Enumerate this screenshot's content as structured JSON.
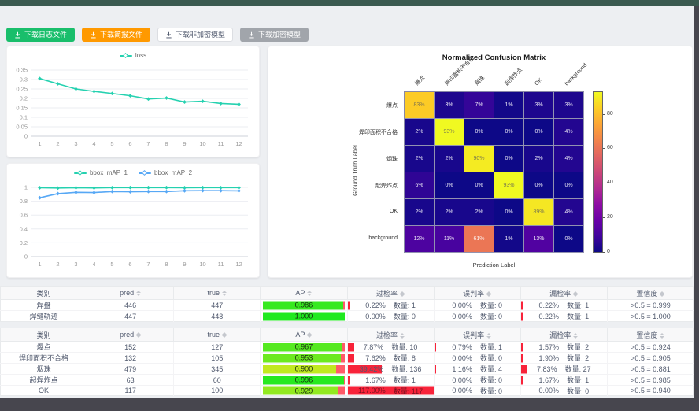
{
  "app": {
    "count_label": "数量:"
  },
  "buttons": [
    {
      "name": "download-log-button",
      "label": "下载日志文件",
      "bg": "#19be6b",
      "fg": "#ffffff",
      "border": ""
    },
    {
      "name": "download-report-button",
      "label": "下载简报文件",
      "bg": "#ff9900",
      "fg": "#ffffff",
      "border": ""
    },
    {
      "name": "download-plain-model-button",
      "label": "下载非加密模型",
      "bg": "#ffffff",
      "fg": "#515a6e",
      "border": "#dcdee2"
    },
    {
      "name": "download-encrypted-model-button",
      "label": "下载加密模型",
      "bg": "#a1a5ab",
      "fg": "#ffffff",
      "border": ""
    }
  ],
  "chart_data": [
    {
      "type": "line",
      "legend": [
        "loss"
      ],
      "colors": [
        "#25d1b0"
      ],
      "x": [
        1,
        2,
        3,
        4,
        5,
        6,
        7,
        8,
        9,
        10,
        11,
        12
      ],
      "series": [
        {
          "name": "loss",
          "values": [
            0.305,
            0.277,
            0.25,
            0.237,
            0.226,
            0.214,
            0.197,
            0.202,
            0.181,
            0.185,
            0.173,
            0.169
          ]
        }
      ],
      "y_ticks": [
        0,
        0.05,
        0.1,
        0.15,
        0.2,
        0.25,
        0.3,
        0.35
      ],
      "y_max": 0.35,
      "grid": true,
      "legend_position": "top-center"
    },
    {
      "type": "line",
      "legend": [
        "bbox_mAP_1",
        "bbox_mAP_2"
      ],
      "colors": [
        "#25d1b0",
        "#57a8f5"
      ],
      "x": [
        1,
        2,
        3,
        4,
        5,
        6,
        7,
        8,
        9,
        10,
        11,
        12
      ],
      "series": [
        {
          "name": "bbox_mAP_1",
          "values": [
            0.995,
            0.99,
            0.995,
            0.992,
            0.996,
            0.997,
            0.997,
            0.997,
            0.995,
            0.997,
            0.996,
            0.996
          ]
        },
        {
          "name": "bbox_mAP_2",
          "values": [
            0.85,
            0.91,
            0.928,
            0.925,
            0.94,
            0.937,
            0.94,
            0.94,
            0.951,
            0.953,
            0.952,
            0.95
          ]
        }
      ],
      "y_ticks": [
        0,
        0.2,
        0.4,
        0.6,
        0.8,
        1
      ],
      "y_max": 1,
      "grid": true,
      "legend_position": "top-center"
    },
    {
      "type": "heatmap",
      "title": "Normalized Confusion Matrix",
      "xlabel": "Prediction Label",
      "ylabel": "Ground Truth Label",
      "labels": [
        "爆点",
        "焊印面积不合格",
        "烟珠",
        "起焊炸点",
        "OK",
        "background"
      ],
      "matrix": [
        [
          83,
          3,
          7,
          1,
          3,
          3
        ],
        [
          2,
          93,
          0,
          0,
          0,
          4
        ],
        [
          2,
          2,
          90,
          0,
          2,
          4
        ],
        [
          6,
          0,
          0,
          93,
          0,
          0
        ],
        [
          2,
          2,
          2,
          0,
          89,
          4
        ],
        [
          12,
          11,
          61,
          1,
          13,
          0
        ]
      ],
      "unit": "%",
      "vmax": 93,
      "colorbar_ticks": [
        0,
        20,
        40,
        60,
        80
      ],
      "colormap": "plasma"
    }
  ],
  "tables": [
    {
      "columns": [
        {
          "key": "label",
          "label": "类别",
          "sortable": false
        },
        {
          "key": "pred",
          "label": "pred",
          "sortable": true
        },
        {
          "key": "true",
          "label": "true",
          "sortable": true
        },
        {
          "key": "ap",
          "label": "AP",
          "sortable": true
        },
        {
          "key": "over",
          "label": "过检率",
          "sortable": true
        },
        {
          "key": "mis",
          "label": "误判率",
          "sortable": true
        },
        {
          "key": "miss",
          "label": "漏检率",
          "sortable": true
        },
        {
          "key": "conf",
          "label": "置信度",
          "sortable": true
        }
      ],
      "rows": [
        {
          "label": "焊盘",
          "pred": "446",
          "true": "447",
          "ap": "0.986",
          "over": {
            "pct": "0.22%",
            "count": "1"
          },
          "mis": {
            "pct": "0.00%",
            "count": "0"
          },
          "miss": {
            "pct": "0.22%",
            "count": "1"
          },
          "conf": ">0.5 = 0.999"
        },
        {
          "label": "焊缝轨迹",
          "pred": "447",
          "true": "448",
          "ap": "1.000",
          "over": {
            "pct": "0.00%",
            "count": "0"
          },
          "mis": {
            "pct": "0.00%",
            "count": "0"
          },
          "miss": {
            "pct": "0.22%",
            "count": "1"
          },
          "conf": ">0.5 = 1.000"
        }
      ]
    },
    {
      "columns": [
        {
          "key": "label",
          "label": "类别",
          "sortable": false
        },
        {
          "key": "pred",
          "label": "pred",
          "sortable": true
        },
        {
          "key": "true",
          "label": "true",
          "sortable": true
        },
        {
          "key": "ap",
          "label": "AP",
          "sortable": true
        },
        {
          "key": "over",
          "label": "过检率",
          "sortable": true
        },
        {
          "key": "mis",
          "label": "误判率",
          "sortable": true
        },
        {
          "key": "miss",
          "label": "漏检率",
          "sortable": true
        },
        {
          "key": "conf",
          "label": "置信度",
          "sortable": true
        }
      ],
      "rows": [
        {
          "label": "爆点",
          "pred": "152",
          "true": "127",
          "ap": "0.967",
          "over": {
            "pct": "7.87%",
            "count": "10"
          },
          "mis": {
            "pct": "0.79%",
            "count": "1"
          },
          "miss": {
            "pct": "1.57%",
            "count": "2"
          },
          "conf": ">0.5 = 0.924"
        },
        {
          "label": "焊印面积不合格",
          "pred": "132",
          "true": "105",
          "ap": "0.953",
          "over": {
            "pct": "7.62%",
            "count": "8"
          },
          "mis": {
            "pct": "0.00%",
            "count": "0"
          },
          "miss": {
            "pct": "1.90%",
            "count": "2"
          },
          "conf": ">0.5 = 0.905"
        },
        {
          "label": "烟珠",
          "pred": "479",
          "true": "345",
          "ap": "0.900",
          "over": {
            "pct": "39.42%",
            "count": "136"
          },
          "mis": {
            "pct": "1.16%",
            "count": "4"
          },
          "miss": {
            "pct": "7.83%",
            "count": "27"
          },
          "conf": ">0.5 = 0.881"
        },
        {
          "label": "起焊炸点",
          "pred": "63",
          "true": "60",
          "ap": "0.996",
          "over": {
            "pct": "1.67%",
            "count": "1"
          },
          "mis": {
            "pct": "0.00%",
            "count": "0"
          },
          "miss": {
            "pct": "1.67%",
            "count": "1"
          },
          "conf": ">0.5 = 0.985"
        },
        {
          "label": "OK",
          "pred": "117",
          "true": "100",
          "ap": "0.929",
          "over": {
            "pct": "117.00%",
            "count": "117"
          },
          "mis": {
            "pct": "0.00%",
            "count": "0"
          },
          "miss": {
            "pct": "0.00%",
            "count": "0"
          },
          "conf": ">0.5 = 0.940"
        }
      ]
    }
  ],
  "colors": {
    "accent_green": "#19be6b",
    "accent_orange": "#ff9900",
    "rate_bar_red": "#f8233a",
    "ap_remainder_red": "#ff5a68",
    "topbar": "#3b5a50",
    "bottombar": "#47464e",
    "page_bg": "#edeff2",
    "series_teal": "#25d1b0",
    "series_blue": "#57a8f5"
  }
}
